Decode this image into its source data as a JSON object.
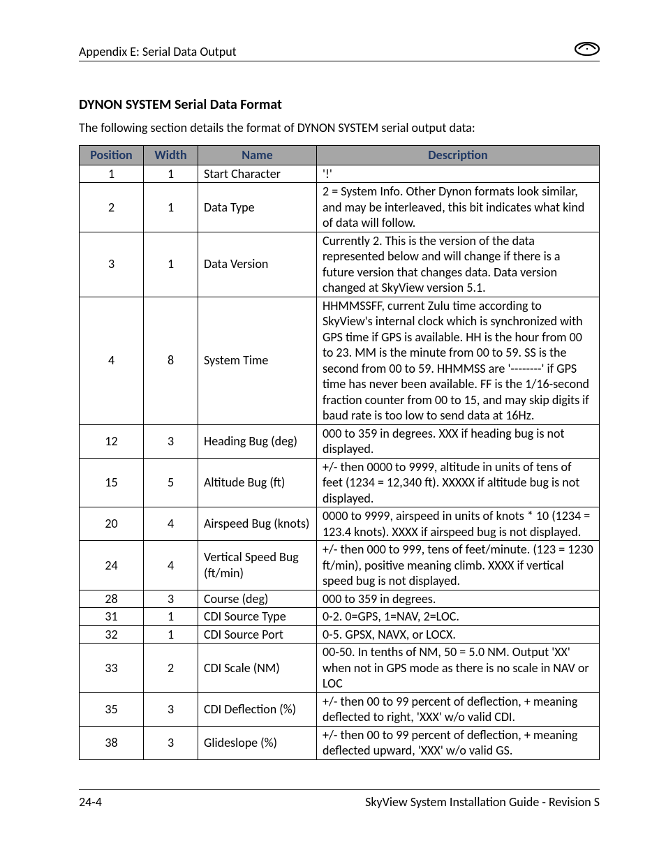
{
  "header": {
    "title": "Appendix E: Serial Data Output"
  },
  "section": {
    "title": "DYNON SYSTEM Serial Data Format",
    "intro": "The following section details the format of DYNON SYSTEM serial output data:"
  },
  "table": {
    "headers": {
      "position": "Position",
      "width": "Width",
      "name": "Name",
      "description": "Description"
    },
    "rows": [
      {
        "position": "1",
        "width": "1",
        "name": "Start Character",
        "description": "'!'"
      },
      {
        "position": "2",
        "width": "1",
        "name": "Data Type",
        "description": "2 = System Info. Other Dynon formats look similar, and may be interleaved, this bit indicates what kind of data will follow."
      },
      {
        "position": "3",
        "width": "1",
        "name": "Data Version",
        "description": "Currently 2. This is the version of the data represented below and will change if there is a future version that changes data. Data version changed at SkyView version 5.1."
      },
      {
        "position": "4",
        "width": "8",
        "name": "System Time",
        "description": "HHMMSSFF, current Zulu time according to SkyView's internal clock which is synchronized with GPS time if GPS is available. HH is the hour from 00 to 23. MM is the minute from 00 to 59. SS is the second from 00 to 59. HHMMSS are '--------' if GPS time has never been available. FF is the 1/16-second fraction counter from 00 to 15, and may skip digits if baud rate is too low to send data at 16Hz."
      },
      {
        "position": "12",
        "width": "3",
        "name": "Heading Bug (deg)",
        "description": "000 to 359 in degrees. XXX if heading bug is not displayed."
      },
      {
        "position": "15",
        "width": "5",
        "name": "Altitude Bug (ft)",
        "description": "+/- then 0000 to 9999, altitude in units of tens of feet (1234 = 12,340 ft). XXXXX if altitude bug is not displayed."
      },
      {
        "position": "20",
        "width": "4",
        "name": "Airspeed Bug (knots)",
        "description": "0000 to 9999, airspeed in units of knots * 10 (1234 = 123.4 knots). XXXX if airspeed bug is not displayed."
      },
      {
        "position": "24",
        "width": "4",
        "name": "Vertical Speed Bug (ft/min)",
        "description": "+/- then 000 to 999, tens of feet/minute. (123 = 1230 ft/min), positive meaning climb. XXXX if vertical speed bug is not displayed."
      },
      {
        "position": "28",
        "width": "3",
        "name": "Course (deg)",
        "description": "000 to 359 in degrees."
      },
      {
        "position": "31",
        "width": "1",
        "name": "CDI Source Type",
        "description": "0-2. 0=GPS, 1=NAV, 2=LOC."
      },
      {
        "position": "32",
        "width": "1",
        "name": "CDI Source Port",
        "description": "0-5. GPSX, NAVX, or LOCX."
      },
      {
        "position": "33",
        "width": "2",
        "name": "CDI Scale (NM)",
        "description": "00-50. In tenths of NM, 50 = 5.0 NM. Output 'XX' when not in GPS mode as there is no scale in NAV or LOC"
      },
      {
        "position": "35",
        "width": "3",
        "name": "CDI Deflection (%)",
        "description": "+/- then 00 to 99 percent of deflection, + meaning deflected to right, 'XXX' w/o valid CDI."
      },
      {
        "position": "38",
        "width": "3",
        "name": "Glideslope (%)",
        "description": "+/- then 00 to 99 percent of deflection, + meaning deflected upward, 'XXX' w/o valid GS."
      }
    ]
  },
  "footer": {
    "page": "24-4",
    "doc": "SkyView System Installation Guide - Revision S"
  },
  "style": {
    "header_bg": "#a6a6a6",
    "header_fg": "#1f3864",
    "border_color": "#000000",
    "body_font_size": 18,
    "title_font_size": 20
  }
}
